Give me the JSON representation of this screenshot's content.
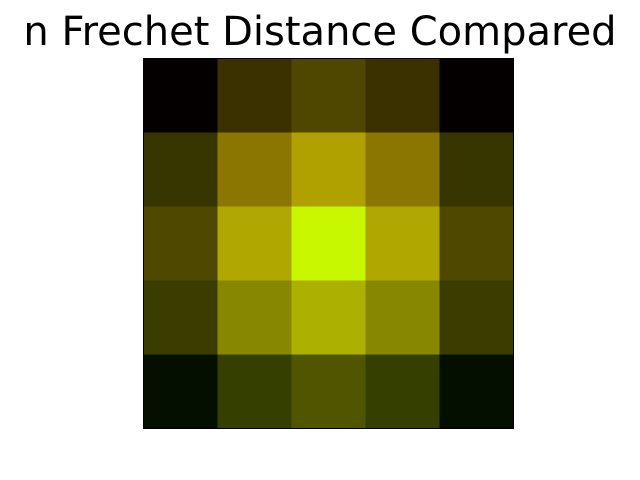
{
  "chart_data": {
    "type": "heatmap",
    "title": "n Frechet Distance Compared",
    "xlabel": "",
    "ylabel": "",
    "rows": 5,
    "cols": 5,
    "grid": false,
    "legend": "none",
    "cells": [
      [
        {
          "color": "#050000"
        },
        {
          "color": "#3a3000"
        },
        {
          "color": "#4f4600"
        },
        {
          "color": "#3a3000"
        },
        {
          "color": "#050000"
        }
      ],
      [
        {
          "color": "#383600"
        },
        {
          "color": "#8a7600"
        },
        {
          "color": "#b0a000"
        },
        {
          "color": "#8a7600"
        },
        {
          "color": "#383600"
        }
      ],
      [
        {
          "color": "#4e4800"
        },
        {
          "color": "#b0a800"
        },
        {
          "color": "#c8f800"
        },
        {
          "color": "#b0a800"
        },
        {
          "color": "#4e4800"
        }
      ],
      [
        {
          "color": "#3a3c00"
        },
        {
          "color": "#888800"
        },
        {
          "color": "#acb000"
        },
        {
          "color": "#888800"
        },
        {
          "color": "#3a3c00"
        }
      ],
      [
        {
          "color": "#040f00"
        },
        {
          "color": "#354000"
        },
        {
          "color": "#505600"
        },
        {
          "color": "#354000"
        },
        {
          "color": "#040f00"
        }
      ]
    ]
  }
}
